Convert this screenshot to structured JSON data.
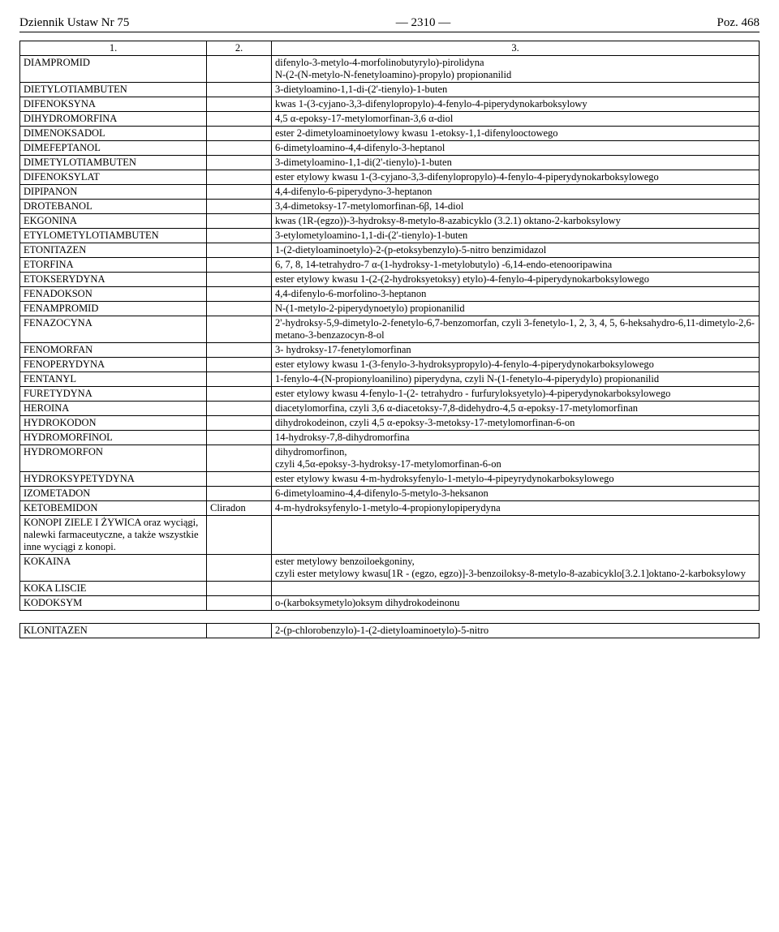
{
  "header": {
    "left": "Dziennik Ustaw Nr 75",
    "center": "— 2310 —",
    "right": "Poz. 468"
  },
  "num_row": {
    "c1": "1.",
    "c2": "2.",
    "c3": "3."
  },
  "rows": [
    {
      "c1": "DIAMPROMID",
      "c2": "",
      "c3": "difenylo-3-metylo-4-morfolinobutyrylo)-pirolidyna\nN-(2-(N-metylo-N-fenetyloamino)-propylo) propionanilid"
    },
    {
      "c1": "DIETYLOTIAMBUTEN",
      "c2": "",
      "c3": "3-dietyloamino-1,1-di-(2'-tienylo)-1-buten"
    },
    {
      "c1": "DIFENOKSYNA",
      "c2": "",
      "c3": "kwas 1-(3-cyjano-3,3-difenylopropylo)-4-fenylo-4-piperydynokarboksylowy"
    },
    {
      "c1": "DIHYDROMORFINA",
      "c2": "",
      "c3": "4,5 α-epoksy-17-metylomorfinan-3,6 α-diol"
    },
    {
      "c1": "DIMENOKSADOL",
      "c2": "",
      "c3": "ester 2-dimetyloaminoetylowy kwasu 1-etoksy-1,1-difenylooctowego"
    },
    {
      "c1": "DIMEFEPTANOL",
      "c2": "",
      "c3": "6-dimetyloamino-4,4-difenylo-3-heptanol"
    },
    {
      "c1": "DIMETYLOTIAMBUTEN",
      "c2": "",
      "c3": "3-dimetyloamino-1,1-di(2'-tienylo)-1-buten"
    },
    {
      "c1": "DIFENOKSYLAT",
      "c2": "",
      "c3": "ester etylowy kwasu 1-(3-cyjano-3,3-difenylopropylo)-4-fenylo-4-piperydynokarboksylowego"
    },
    {
      "c1": "DIPIPANON",
      "c2": "",
      "c3": "4,4-difenylo-6-piperydyno-3-heptanon"
    },
    {
      "c1": "DROTEBANOL",
      "c2": "",
      "c3": "3,4-dimetoksy-17-metylomorfinan-6β, 14-diol"
    },
    {
      "c1": "EKGONINA",
      "c2": "",
      "c3": "kwas (1R-(egzo))-3-hydroksy-8-metylo-8-azabicyklo (3.2.1) oktano-2-karboksylowy"
    },
    {
      "c1": "ETYLOMETYLOTIAMBUTEN",
      "c2": "",
      "c3": "3-etylometyloamino-1,1-di-(2'-tienylo)-1-buten"
    },
    {
      "c1": "ETONITAZEN",
      "c2": "",
      "c3": "1-(2-dietyloaminoetylo)-2-(p-etoksybenzylo)-5-nitro benzimidazol"
    },
    {
      "c1": "ETORFINA",
      "c2": "",
      "c3": "6, 7, 8, 14-tetrahydro-7 α-(1-hydroksy-1-metylobutylo) -6,14-endo-etenooripawina"
    },
    {
      "c1": "ETOKSERYDYNA",
      "c2": "",
      "c3": "ester etylowy kwasu 1-(2-(2-hydroksyetoksy) etylo)-4-fenylo-4-piperydynokarboksylowego"
    },
    {
      "c1": "FENADOKSON",
      "c2": "",
      "c3": "4,4-difenylo-6-morfolino-3-heptanon"
    },
    {
      "c1": "FENAMPROMID",
      "c2": "",
      "c3": "N-(1-metylo-2-piperydynoetylo) propionanilid"
    },
    {
      "c1": "FENAZOCYNA",
      "c2": "",
      "c3": "2'-hydroksy-5,9-dimetylo-2-fenetylo-6,7-benzomorfan, czyli 3-fenetylo-1, 2, 3, 4, 5, 6-heksahydro-6,11-dimetylo-2,6-metano-3-benzazocyn-8-ol"
    },
    {
      "c1": "FENOMORFAN",
      "c2": "",
      "c3": "3- hydroksy-17-fenetylomorfinan"
    },
    {
      "c1": "FENOPERYDYNA",
      "c2": "",
      "c3": "ester etylowy kwasu 1-(3-fenylo-3-hydroksypropylo)-4-fenylo-4-piperydynokarboksylowego"
    },
    {
      "c1": "FENTANYL",
      "c2": "",
      "c3": "1-fenylo-4-(N-propionyloanilino) piperydyna, czyli N-(1-fenetylo-4-piperydylo) propionanilid"
    },
    {
      "c1": "FURETYDYNA",
      "c2": "",
      "c3": "ester etylowy kwasu 4-fenylo-1-(2- tetrahydro - furfuryloksyetylo)-4-piperydynokarboksylowego"
    },
    {
      "c1": "HEROINA",
      "c2": "",
      "c3": "diacetylomorfina, czyli 3,6 α-diacetoksy-7,8-didehydro-4,5 α-epoksy-17-metylomorfinan"
    },
    {
      "c1": "HYDROKODON",
      "c2": "",
      "c3": "dihydrokodeinon, czyli  4,5 α-epoksy-3-metoksy-17-metylomorfinan-6-on"
    },
    {
      "c1": "HYDROMORFINOL",
      "c2": "",
      "c3": "14-hydroksy-7,8-dihydromorfina"
    },
    {
      "c1": "HYDROMORFON",
      "c2": "",
      "c3": "dihydromorfinon,\nczyli 4,5α-epoksy-3-hydroksy-17-metylomorfinan-6-on"
    },
    {
      "c1": "HYDROKSYPETYDYNA",
      "c2": "",
      "c3": "ester etylowy kwasu 4-m-hydroksyfenylo-1-metylo-4-pipeyrydynokarboksylowego"
    },
    {
      "c1": "IZOMETADON",
      "c2": "",
      "c3": "6-dimetyloamino-4,4-difenylo-5-metylo-3-heksanon"
    },
    {
      "c1": "KETOBEMIDON",
      "c2": "Cliradon",
      "c3": "4-m-hydroksyfenylo-1-metylo-4-propionylopiperydyna"
    },
    {
      "c1": "KONOPI  ZIELE  I  ŻYWICA oraz wyciągi, nalewki farmaceutyczne, a także wszystkie inne  wyciągi z konopi.",
      "c2": "",
      "c3": ""
    },
    {
      "c1": "KOKAINA",
      "c2": "",
      "c3": "ester metylowy benzoiloekgoniny,\nczyli ester metylowy kwasu[1R - (egzo, egzo)]-3-benzoiloksy-8-metylo-8-azabicyklo[3.2.1]oktano-2-karboksylowy"
    },
    {
      "c1": "KOKA LISCIE",
      "c2": "",
      "c3": ""
    },
    {
      "c1": "KODOKSYM",
      "c2": "",
      "c3": "o-(karboksymetylo)oksym dihydrokodeinonu"
    },
    {
      "spacer": true
    },
    {
      "c1": "KLONITAZEN",
      "c2": "",
      "c3": "2-(p-chlorobenzylo)-1-(2-dietyloaminoetylo)-5-nitro"
    }
  ]
}
